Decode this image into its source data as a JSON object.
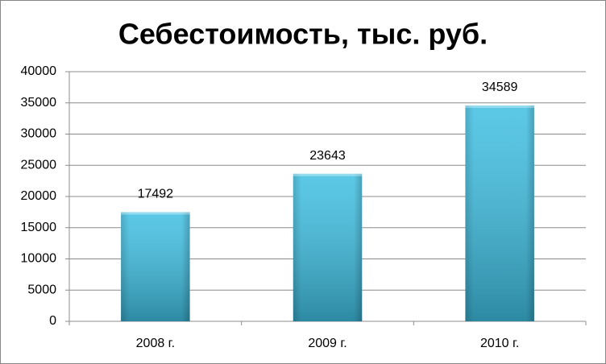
{
  "chart_data": {
    "type": "bar",
    "title": "Себестоимость, тыс. руб.",
    "categories": [
      "2008 г.",
      "2009 г.",
      "2010 г."
    ],
    "values": [
      17492,
      23643,
      34589
    ],
    "color": "#3fbfe2",
    "ylim": [
      0,
      40000
    ],
    "yticks": [
      0,
      5000,
      10000,
      15000,
      20000,
      25000,
      30000,
      35000,
      40000
    ],
    "grid": true
  }
}
